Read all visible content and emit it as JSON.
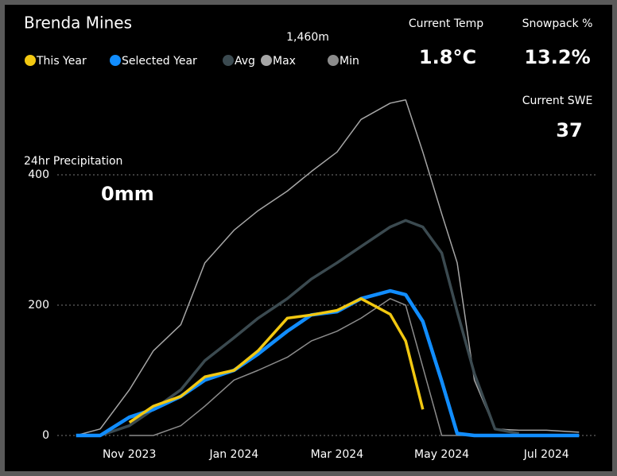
{
  "chart_data": {
    "type": "line",
    "title": "Brenda Mines",
    "subtitle": "1,460m",
    "stats": [
      {
        "label": "Current Temp",
        "value": "1.8°C"
      },
      {
        "label": "Snowpack %",
        "value": "13.2%"
      },
      {
        "label": "Current SWE",
        "value": "37"
      },
      {
        "label": "24hr Precipitation",
        "value": "0mm"
      }
    ],
    "x": [
      "2023-10-01",
      "2023-10-15",
      "2023-11-01",
      "2023-11-15",
      "2023-12-01",
      "2023-12-15",
      "2024-01-01",
      "2024-01-15",
      "2024-02-01",
      "2024-02-15",
      "2024-03-01",
      "2024-03-15",
      "2024-04-01",
      "2024-04-10",
      "2024-04-20",
      "2024-05-01",
      "2024-05-10",
      "2024-05-20",
      "2024-06-01",
      "2024-06-15",
      "2024-07-01",
      "2024-07-20"
    ],
    "xlim": [
      "2023-09-20",
      "2024-07-31"
    ],
    "xticks": [
      {
        "value": "2023-11-01",
        "label": "Nov 2023"
      },
      {
        "value": "2024-01-01",
        "label": "Jan 2024"
      },
      {
        "value": "2024-03-01",
        "label": "Mar 2024"
      },
      {
        "value": "2024-05-01",
        "label": "May 2024"
      },
      {
        "value": "2024-07-01",
        "label": "Jul 2024"
      }
    ],
    "ylim": [
      0,
      550
    ],
    "yticks": [
      0,
      200,
      400
    ],
    "grid": true,
    "series": [
      {
        "name": "This Year",
        "color": "#f2c811",
        "values": [
          null,
          null,
          20,
          45,
          60,
          90,
          100,
          130,
          180,
          185,
          192,
          210,
          186,
          145,
          40,
          null,
          null,
          null,
          null,
          null,
          null,
          null
        ]
      },
      {
        "name": "Selected Year",
        "color": "#118dff",
        "values": [
          0,
          0,
          28,
          40,
          60,
          85,
          100,
          125,
          160,
          185,
          190,
          210,
          222,
          216,
          175,
          83,
          3,
          0,
          0,
          0,
          0,
          0
        ]
      },
      {
        "name": "Avg",
        "color": "#3b4a50",
        "values": [
          null,
          0,
          15,
          40,
          70,
          115,
          150,
          180,
          210,
          240,
          265,
          290,
          320,
          330,
          320,
          280,
          190,
          95,
          10,
          3,
          null,
          null
        ]
      },
      {
        "name": "Max",
        "color": "#a6a6a6",
        "values": [
          0,
          10,
          70,
          130,
          170,
          265,
          315,
          345,
          375,
          405,
          435,
          485,
          510,
          515,
          435,
          340,
          265,
          85,
          10,
          8,
          8,
          5
        ]
      },
      {
        "name": "Min",
        "color": "#8c8c8c",
        "values": [
          null,
          null,
          0,
          0,
          15,
          45,
          85,
          100,
          120,
          145,
          160,
          180,
          210,
          200,
          105,
          0,
          0,
          0,
          0,
          0,
          0,
          0
        ]
      }
    ]
  }
}
